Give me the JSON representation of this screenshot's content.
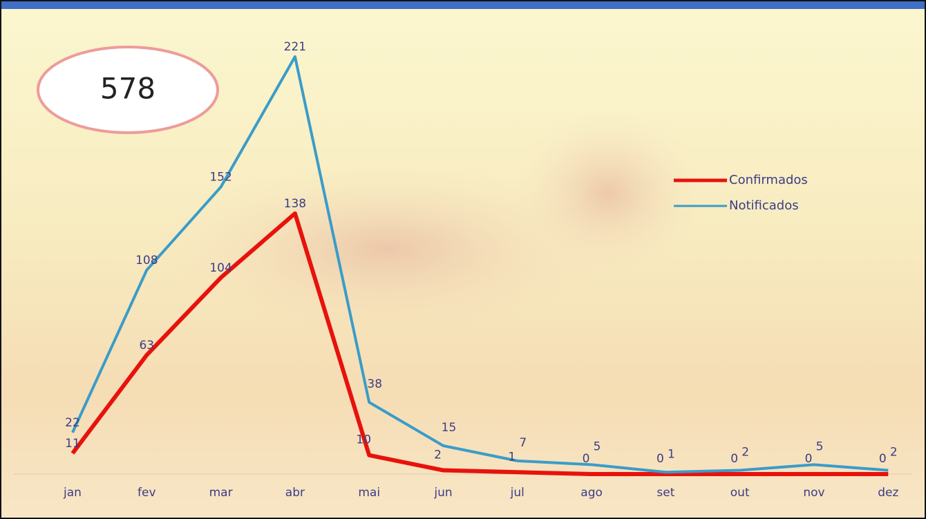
{
  "chart_data": {
    "type": "line",
    "categories": [
      "jan",
      "fev",
      "mar",
      "abr",
      "mai",
      "jun",
      "jul",
      "ago",
      "set",
      "out",
      "nov",
      "dez"
    ],
    "series": [
      {
        "name": "Confirmados",
        "color": "#e8120c",
        "values": [
          11,
          63,
          104,
          138,
          10,
          2,
          1,
          0,
          0,
          0,
          0,
          0
        ]
      },
      {
        "name": "Notificados",
        "color": "#3a9cc9",
        "values": [
          22,
          108,
          152,
          221,
          38,
          15,
          7,
          5,
          1,
          2,
          5,
          2
        ]
      }
    ],
    "annotation": "578",
    "legend": "right"
  }
}
